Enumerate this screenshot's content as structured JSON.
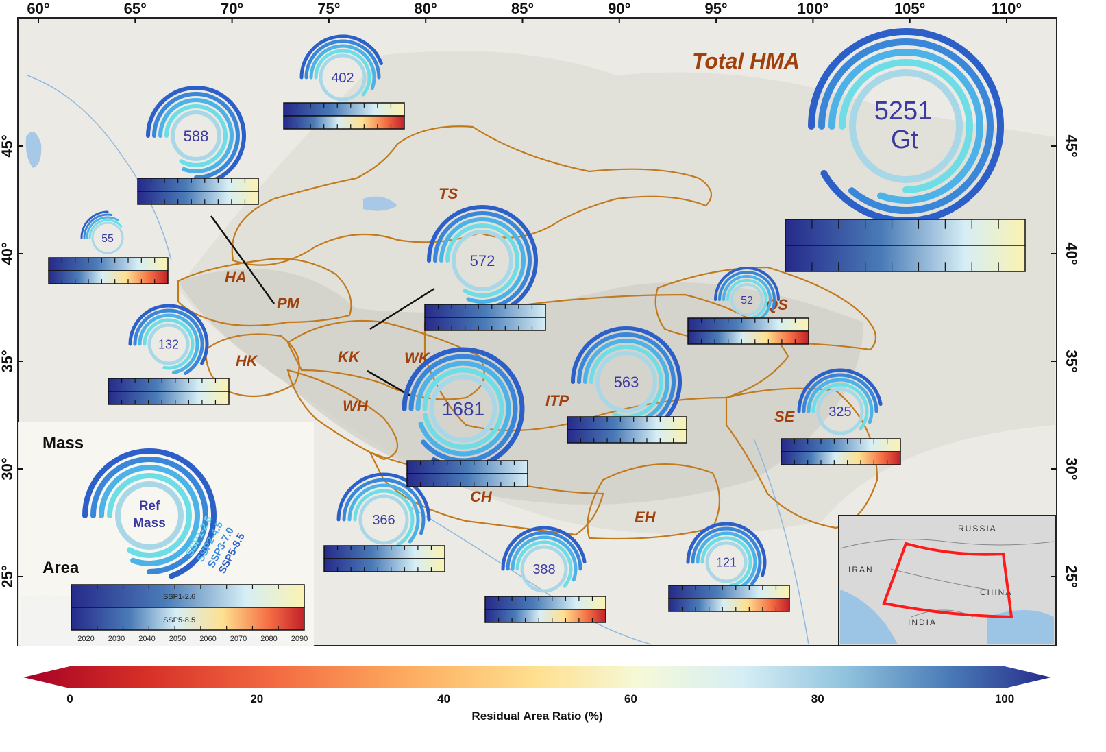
{
  "map": {
    "top_ticks": [
      "60°",
      "65°",
      "70°",
      "75°",
      "80°",
      "85°",
      "90°",
      "95°",
      "100°",
      "105°",
      "110°"
    ],
    "side_ticks": [
      "45°",
      "40°",
      "35°",
      "30°",
      "25°"
    ],
    "regions": [
      "TS",
      "HA",
      "PM",
      "HK",
      "KK",
      "WK",
      "WH",
      "ITP",
      "QS",
      "SE",
      "CH",
      "EH"
    ]
  },
  "total": {
    "title": "Total HMA",
    "value": "5251",
    "unit": "Gt"
  },
  "rings": [
    {
      "value": "402"
    },
    {
      "value": "588"
    },
    {
      "value": "55"
    },
    {
      "value": "132"
    },
    {
      "value": "572"
    },
    {
      "value": "1681"
    },
    {
      "value": "563"
    },
    {
      "value": "52"
    },
    {
      "value": "325"
    },
    {
      "value": "366"
    },
    {
      "value": "388"
    },
    {
      "value": "121"
    }
  ],
  "legend": {
    "mass_title": "Mass",
    "area_title": "Area",
    "ref_line1": "Ref",
    "ref_line2": "Mass",
    "ssp": [
      "SSP1-2.6",
      "SSP2-4.5",
      "SSP3-7.0",
      "SSP5-8.5"
    ],
    "bar_top_label": "SSP1-2.6",
    "bar_bottom_label": "SSP5-8.5",
    "years": [
      "2020",
      "2030",
      "2040",
      "2050",
      "2060",
      "2070",
      "2080",
      "2090"
    ]
  },
  "inset": {
    "labels": [
      "RUSSIA",
      "IRAN",
      "CHINA",
      "INDIA"
    ]
  },
  "colorbar": {
    "ticks": [
      "0",
      "20",
      "40",
      "60",
      "80",
      "100"
    ],
    "title": "Residual Area Ratio (%)"
  },
  "colors": {
    "ssp1": "#6fdde6",
    "ssp2": "#4cb2e8",
    "ssp3": "#3a86d8",
    "ssp5": "#2c5fc8",
    "ref_ring": "#a8d8e8",
    "region_outline": "#c27a1d",
    "region_text": "#a0400c",
    "inset_box": "#ff1a1a"
  }
}
